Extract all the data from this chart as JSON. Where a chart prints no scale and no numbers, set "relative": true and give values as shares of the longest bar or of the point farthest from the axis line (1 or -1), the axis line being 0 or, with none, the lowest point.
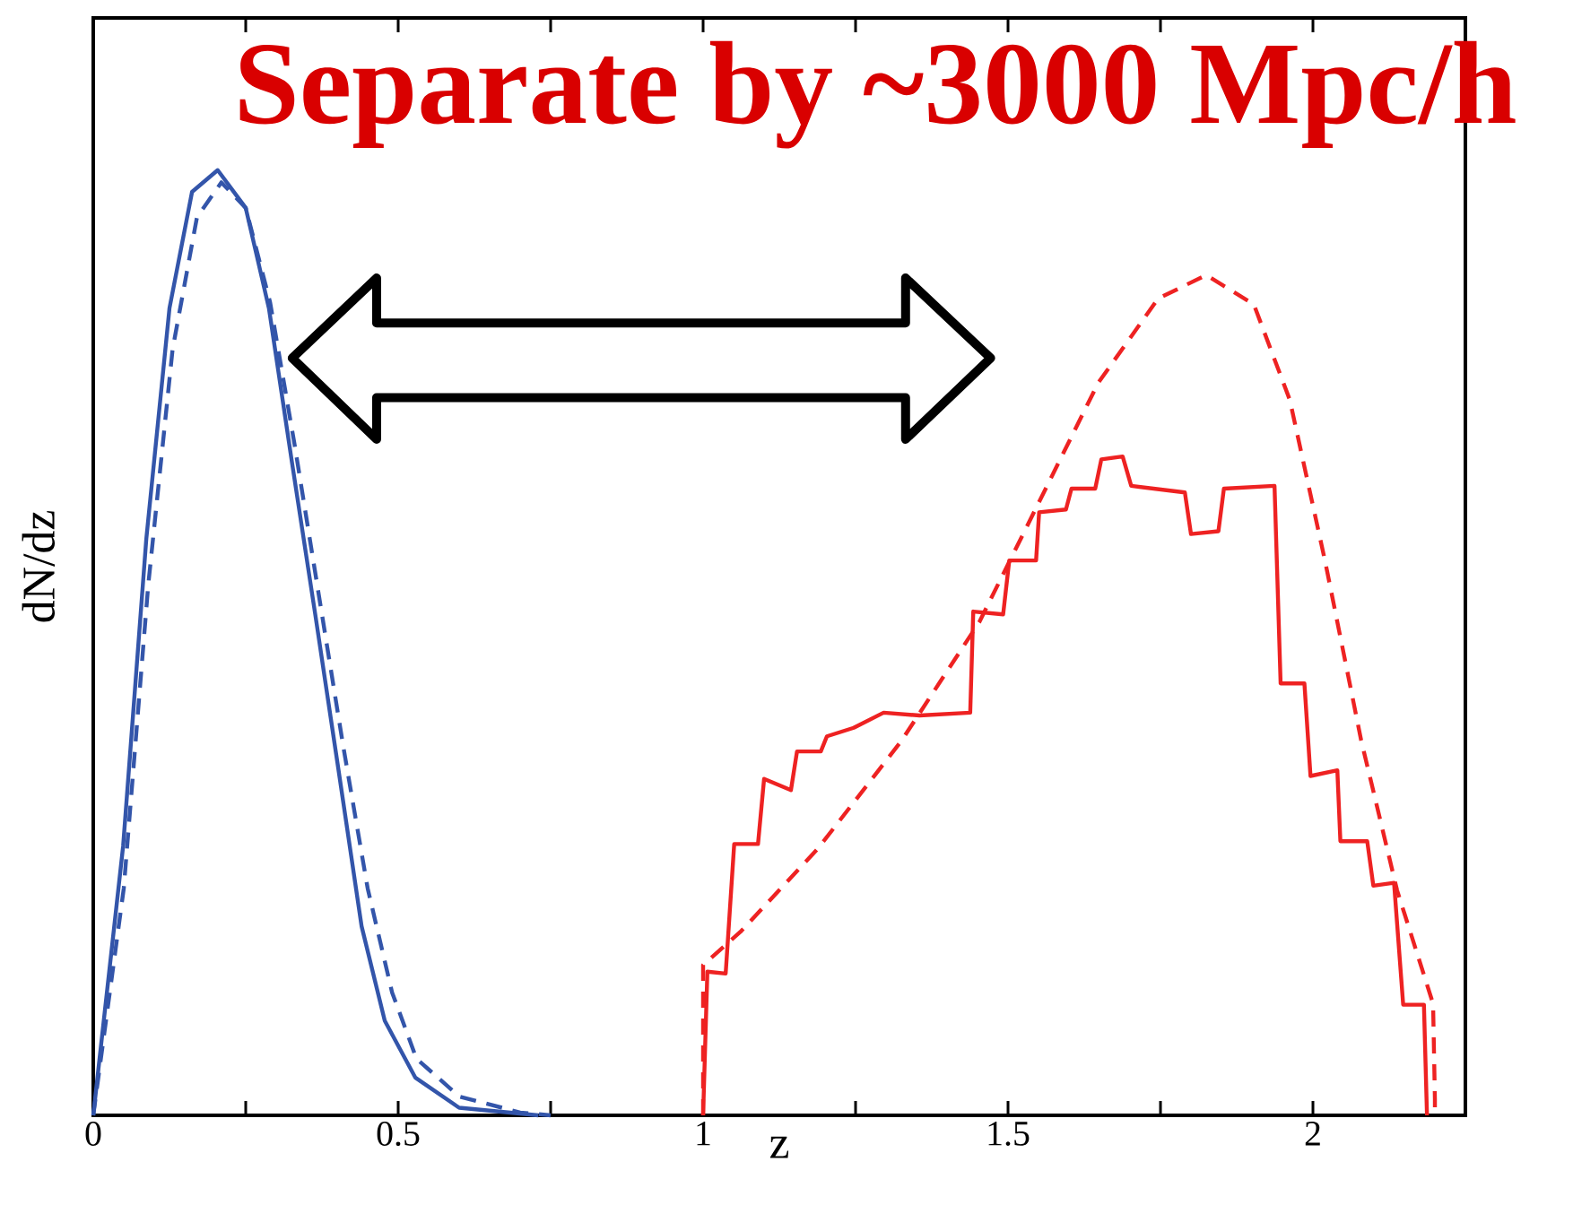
{
  "chart_data": {
    "type": "line",
    "relative": true,
    "xlabel": "z",
    "ylabel": "dN/dz",
    "annotations": [
      "Separate by ~3000 Mpc/h"
    ],
    "xlim": [
      0,
      2.25
    ],
    "xticks": [
      0,
      {
        "value": 0.25,
        "label": null
      },
      0.5,
      {
        "value": 0.75,
        "label": null
      },
      1,
      {
        "value": 1.25,
        "label": null
      },
      1.5,
      {
        "value": 1.75,
        "label": null
      },
      2
    ],
    "series": [
      {
        "color": "#3355aa",
        "line_style": "solid",
        "x": [
          0,
          0.049,
          0.087,
          0.125,
          0.162,
          0.204,
          0.25,
          0.288,
          0.326,
          0.364,
          0.402,
          0.44,
          0.478,
          0.528,
          0.6,
          0.73
        ],
        "values": [
          0,
          0.285,
          0.61,
          0.854,
          0.977,
          1,
          0.96,
          0.854,
          0.69,
          0.53,
          0.366,
          0.2,
          0.1,
          0.04,
          0.008,
          0
        ]
      },
      {
        "color": "#3355aa",
        "line_style": "dashed",
        "x": [
          0,
          0.05,
          0.09,
          0.13,
          0.17,
          0.21,
          0.25,
          0.29,
          0.33,
          0.37,
          0.41,
          0.45,
          0.49,
          0.53,
          0.6,
          0.7,
          0.75
        ],
        "values": [
          0,
          0.24,
          0.56,
          0.81,
          0.95,
          0.987,
          0.96,
          0.86,
          0.71,
          0.55,
          0.39,
          0.24,
          0.13,
          0.06,
          0.02,
          0.003,
          0
        ]
      },
      {
        "color": "#ee2222",
        "line_style": "solid",
        "x": [
          1.0,
          1.007,
          1.037,
          1.051,
          1.09,
          1.1,
          1.144,
          1.154,
          1.193,
          1.203,
          1.247,
          1.296,
          1.355,
          1.438,
          1.443,
          1.492,
          1.502,
          1.546,
          1.551,
          1.595,
          1.604,
          1.643,
          1.653,
          1.688,
          1.702,
          1.79,
          1.8,
          1.845,
          1.854,
          1.937,
          1.947,
          1.986,
          1.996,
          2.04,
          2.045,
          2.089,
          2.099,
          2.133,
          2.148,
          2.182,
          2.187
        ],
        "values": [
          0,
          0.152,
          0.15,
          0.287,
          0.287,
          0.356,
          0.344,
          0.385,
          0.385,
          0.401,
          0.41,
          0.426,
          0.423,
          0.426,
          0.533,
          0.53,
          0.587,
          0.587,
          0.638,
          0.641,
          0.663,
          0.663,
          0.694,
          0.697,
          0.666,
          0.659,
          0.615,
          0.618,
          0.663,
          0.666,
          0.457,
          0.457,
          0.359,
          0.365,
          0.29,
          0.29,
          0.243,
          0.246,
          0.117,
          0.117,
          0
        ]
      },
      {
        "color": "#ee2222",
        "line_style": "dashed",
        "x": [
          1.0,
          1.0,
          1.061,
          1.188,
          1.325,
          1.453,
          1.551,
          1.648,
          1.746,
          1.825,
          1.903,
          1.962,
          2.02,
          2.079,
          2.138,
          2.197,
          2.2,
          2.2
        ],
        "values": [
          0,
          0.159,
          0.194,
          0.282,
          0.396,
          0.522,
          0.649,
          0.775,
          0.864,
          0.889,
          0.858,
          0.757,
          0.586,
          0.397,
          0.238,
          0.118,
          0.017,
          0
        ]
      }
    ]
  }
}
